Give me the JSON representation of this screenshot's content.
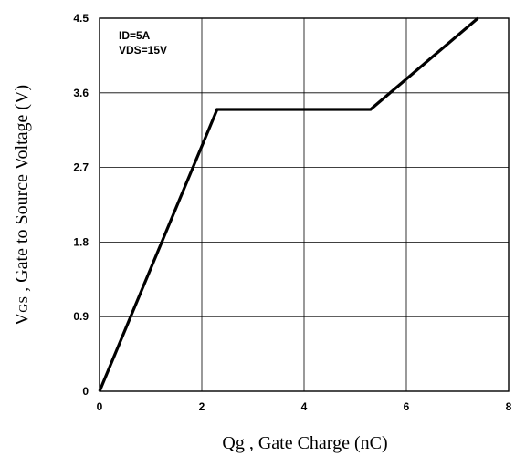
{
  "chart_data": {
    "type": "line",
    "title": "",
    "xlabel": "Qg , Gate Charge (nC)",
    "ylabel": {
      "main": "V",
      "subscript": "GS",
      "rest": " , Gate to Source Voltage (V)"
    },
    "xlim": [
      0,
      8
    ],
    "ylim": [
      0,
      4.5
    ],
    "x_ticks": [
      "0",
      "2",
      "4",
      "6",
      "8"
    ],
    "y_ticks": [
      "0",
      "0.9",
      "1.8",
      "2.7",
      "3.6",
      "4.5"
    ],
    "grid": true,
    "annotations": [
      "ID=5A",
      "VDS=15V"
    ],
    "series": [
      {
        "x": [
          0,
          2.3,
          5.3,
          7.4
        ],
        "y": [
          0,
          3.4,
          3.4,
          4.5
        ]
      }
    ],
    "line_color": "#000000"
  }
}
